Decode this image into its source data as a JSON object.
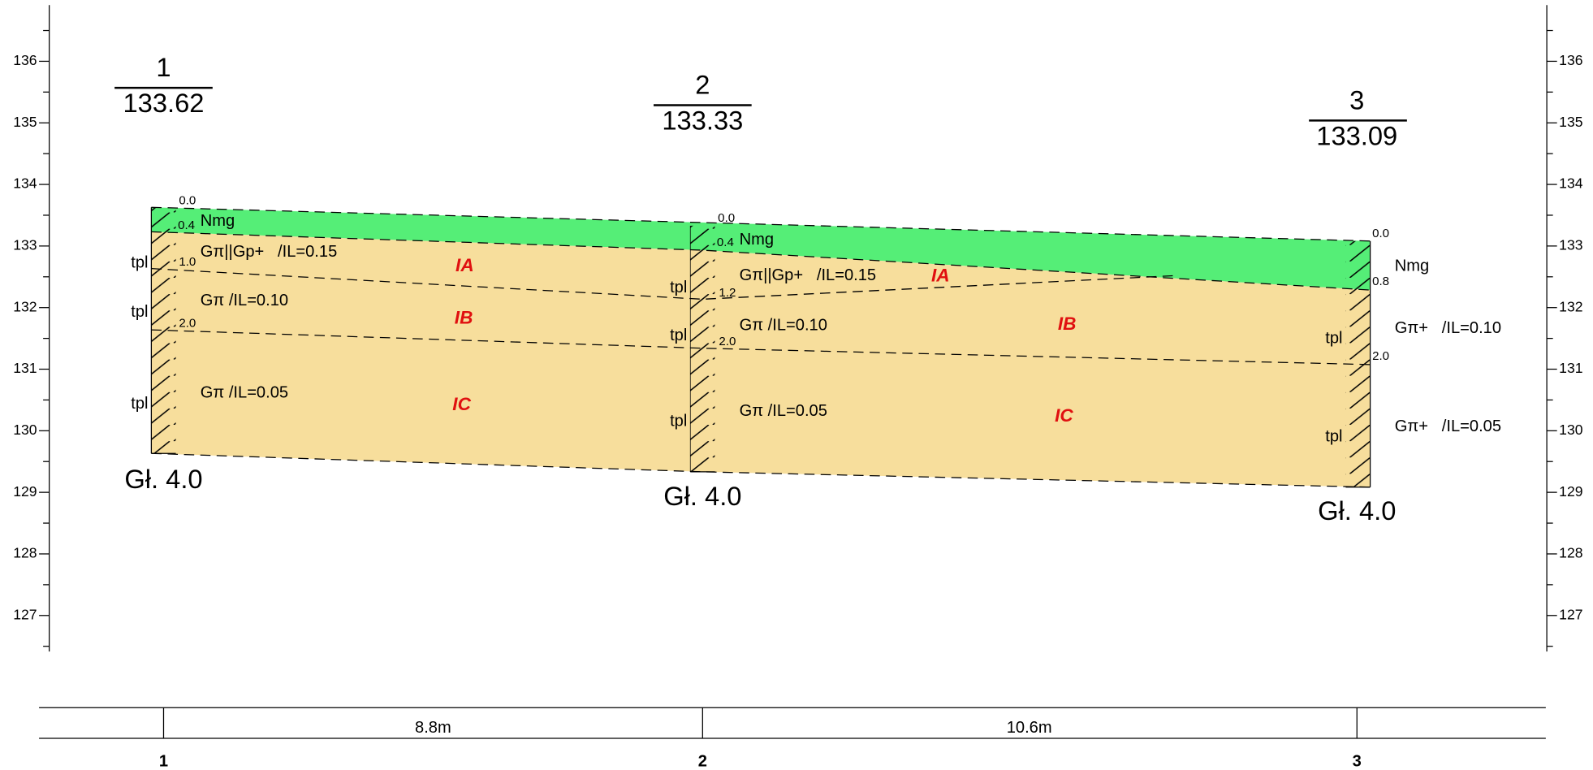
{
  "axis": {
    "ticks": [
      "136",
      "135",
      "134",
      "133",
      "132",
      "131",
      "130",
      "129",
      "128",
      "127"
    ]
  },
  "boreholes": [
    {
      "number": "1",
      "elevation": "133.62",
      "depth": "Gł. 4.0",
      "depth_marks": [
        "0.0",
        "0.4",
        "1.0",
        "2.0"
      ],
      "soils": [
        "Nmg",
        "Gπ||Gp+   /IL=0.15",
        "Gπ /IL=0.10",
        "Gπ /IL=0.05"
      ],
      "tpl": [
        "tpl",
        "tpl",
        "tpl"
      ]
    },
    {
      "number": "2",
      "elevation": "133.33",
      "depth": "Gł. 4.0",
      "depth_marks": [
        "0.0",
        "0.4",
        "1.2",
        "2.0"
      ],
      "soils": [
        "Nmg",
        "Gπ||Gp+   /IL=0.15",
        "Gπ /IL=0.10",
        "Gπ /IL=0.05"
      ],
      "tpl": [
        "tpl",
        "tpl",
        "tpl"
      ]
    },
    {
      "number": "3",
      "elevation": "133.09",
      "depth": "Gł. 4.0",
      "depth_marks": [
        "0.0",
        "0.8",
        "2.0"
      ],
      "soils": [
        "Nmg",
        "Gπ+   /IL=0.10",
        "Gπ+   /IL=0.05"
      ],
      "tpl": [
        "tpl",
        "tpl"
      ]
    }
  ],
  "layers": [
    "IA",
    "IA",
    "IB",
    "IB",
    "IC",
    "IC"
  ],
  "distances": [
    "8.8m",
    "10.6m"
  ],
  "stations": [
    "1",
    "2",
    "3"
  ]
}
